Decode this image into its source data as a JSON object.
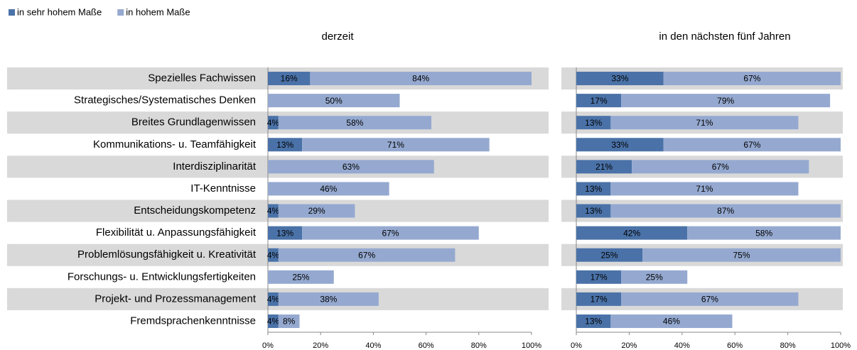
{
  "chart_data": [
    {
      "type": "bar",
      "orientation": "horizontal",
      "stacked": true,
      "title": "derzeit",
      "categories": [
        "Spezielles Fachwissen",
        "Strategisches/Systematisches Denken",
        "Breites Grundlagenwissen",
        "Kommunikations- u. Teamfähigkeit",
        "Interdisziplinarität",
        "IT-Kenntnisse",
        "Entscheidungskompetenz",
        "Flexibilität u. Anpassungsfähigkeit",
        "Problemlösungsfähigkeit u. Kreativität",
        "Forschungs- u. Entwicklungsfertigkeiten",
        "Projekt- und Prozessmanagement",
        "Fremdsprachenkenntnisse"
      ],
      "series": [
        {
          "name": "in sehr hohem Maße",
          "color": "#4a72a8",
          "values": [
            16,
            null,
            4,
            13,
            null,
            null,
            4,
            13,
            4,
            null,
            4,
            4
          ],
          "value_labels": [
            "16%",
            null,
            "4%",
            "13%",
            null,
            null,
            "4%",
            "13%",
            "4%",
            null,
            "4%",
            "4%"
          ]
        },
        {
          "name": "in hohem Maße",
          "color": "#95a9d0",
          "values": [
            84,
            50,
            58,
            71,
            63,
            46,
            29,
            67,
            67,
            25,
            38,
            8
          ],
          "value_labels": [
            "84%",
            "50%",
            "58%",
            "71%",
            "63%",
            "46%",
            "29%",
            "67%",
            "67%",
            "25%",
            "38%",
            "8%"
          ]
        }
      ],
      "xlim": [
        0,
        100
      ],
      "xticks": [
        {
          "value": 0,
          "label": "0%"
        },
        {
          "value": 20,
          "label": "20%"
        },
        {
          "value": 40,
          "label": "40%"
        },
        {
          "value": 60,
          "label": "60%"
        },
        {
          "value": 80,
          "label": "80%"
        },
        {
          "value": 100,
          "label": "100%"
        }
      ]
    },
    {
      "type": "bar",
      "orientation": "horizontal",
      "stacked": true,
      "title": "in den nächsten fünf Jahren",
      "series": [
        {
          "color": "#4a72a8",
          "values": [
            33,
            17,
            13,
            33,
            21,
            13,
            13,
            42,
            25,
            17,
            17,
            13
          ],
          "value_labels": [
            "33%",
            "17%",
            "13%",
            "33%",
            "21%",
            "13%",
            "13%",
            "42%",
            "25%",
            "17%",
            "17%",
            "13%"
          ]
        },
        {
          "color": "#95a9d0",
          "values": [
            67,
            79,
            71,
            67,
            67,
            71,
            87,
            58,
            75,
            25,
            67,
            46
          ],
          "value_labels": [
            "67%",
            "79%",
            "71%",
            "67%",
            "67%",
            "71%",
            "87%",
            "58%",
            "75%",
            "25%",
            "67%",
            "46%"
          ]
        }
      ],
      "xlim": [
        0,
        100
      ],
      "xticks": [
        {
          "value": 0,
          "label": "0%"
        },
        {
          "value": 20,
          "label": "20%"
        },
        {
          "value": 40,
          "label": "40%"
        },
        {
          "value": 60,
          "label": "60%"
        },
        {
          "value": 80,
          "label": "80%"
        },
        {
          "value": 100,
          "label": "100%"
        }
      ]
    }
  ]
}
